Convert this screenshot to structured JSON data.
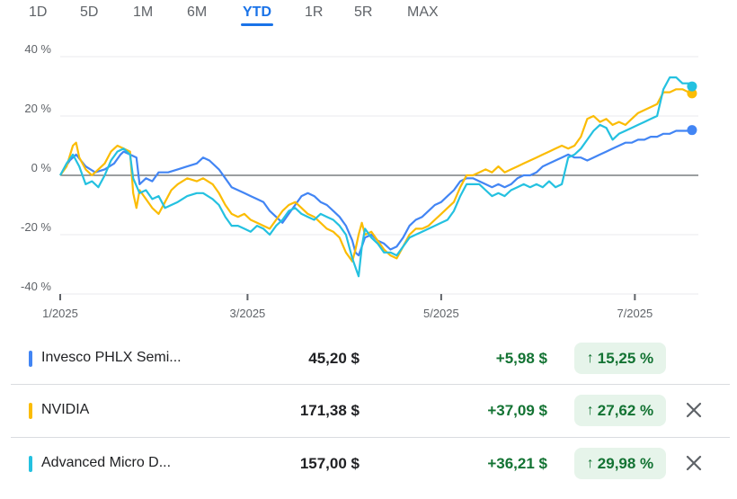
{
  "tabs": [
    {
      "label": "1D",
      "active": false
    },
    {
      "label": "5D",
      "active": false
    },
    {
      "label": "1M",
      "active": false
    },
    {
      "label": "6M",
      "active": false
    },
    {
      "label": "YTD",
      "active": true
    },
    {
      "label": "1R",
      "active": false
    },
    {
      "label": "5R",
      "active": false
    },
    {
      "label": "MAX",
      "active": false
    }
  ],
  "chart_data": {
    "type": "line",
    "ylim": [
      -40,
      40
    ],
    "yticks": [
      {
        "v": 40,
        "label": "40 %"
      },
      {
        "v": 20,
        "label": "20 %"
      },
      {
        "v": 0,
        "label": "0 %"
      },
      {
        "v": -20,
        "label": "-20 %"
      },
      {
        "v": -40,
        "label": "-40 %"
      }
    ],
    "xticks": [
      {
        "label": "1/2025",
        "t": 0
      },
      {
        "label": "3/2025",
        "t": 59
      },
      {
        "label": "5/2025",
        "t": 120
      },
      {
        "label": "7/2025",
        "t": 181
      }
    ],
    "xmax": 201,
    "grid": true,
    "series": [
      {
        "name": "Invesco PHLX Semi...",
        "color": "#4285f4",
        "points": [
          [
            0,
            0
          ],
          [
            3,
            5
          ],
          [
            5,
            7
          ],
          [
            8,
            3
          ],
          [
            11,
            1
          ],
          [
            14,
            2
          ],
          [
            17,
            4
          ],
          [
            19,
            7
          ],
          [
            20,
            8
          ],
          [
            22,
            7
          ],
          [
            24,
            6
          ],
          [
            25,
            -3
          ],
          [
            27,
            -1
          ],
          [
            29,
            -2
          ],
          [
            31,
            1
          ],
          [
            34,
            1
          ],
          [
            37,
            2
          ],
          [
            40,
            3
          ],
          [
            43,
            4
          ],
          [
            45,
            6
          ],
          [
            47,
            5
          ],
          [
            50,
            2
          ],
          [
            52,
            -1
          ],
          [
            54,
            -4
          ],
          [
            56,
            -5
          ],
          [
            58,
            -6
          ],
          [
            60,
            -7
          ],
          [
            62,
            -8
          ],
          [
            64,
            -9
          ],
          [
            66,
            -12
          ],
          [
            68,
            -14
          ],
          [
            70,
            -16
          ],
          [
            72,
            -13
          ],
          [
            74,
            -10
          ],
          [
            76,
            -7
          ],
          [
            78,
            -6
          ],
          [
            80,
            -7
          ],
          [
            82,
            -9
          ],
          [
            84,
            -10
          ],
          [
            86,
            -12
          ],
          [
            88,
            -14
          ],
          [
            90,
            -17
          ],
          [
            92,
            -22
          ],
          [
            93,
            -26
          ],
          [
            94,
            -27
          ],
          [
            95,
            -24
          ],
          [
            96,
            -21
          ],
          [
            98,
            -20
          ],
          [
            100,
            -22
          ],
          [
            102,
            -23
          ],
          [
            104,
            -25
          ],
          [
            106,
            -24
          ],
          [
            108,
            -21
          ],
          [
            110,
            -17
          ],
          [
            112,
            -15
          ],
          [
            114,
            -14
          ],
          [
            116,
            -12
          ],
          [
            118,
            -10
          ],
          [
            120,
            -9
          ],
          [
            122,
            -7
          ],
          [
            124,
            -5
          ],
          [
            126,
            -2
          ],
          [
            128,
            -1
          ],
          [
            130,
            -1
          ],
          [
            132,
            -2
          ],
          [
            134,
            -3
          ],
          [
            136,
            -4
          ],
          [
            138,
            -3
          ],
          [
            140,
            -4
          ],
          [
            142,
            -3
          ],
          [
            144,
            -1
          ],
          [
            146,
            0
          ],
          [
            148,
            0
          ],
          [
            150,
            1
          ],
          [
            152,
            3
          ],
          [
            154,
            4
          ],
          [
            156,
            5
          ],
          [
            158,
            6
          ],
          [
            160,
            7
          ],
          [
            162,
            6
          ],
          [
            164,
            6
          ],
          [
            166,
            5
          ],
          [
            168,
            6
          ],
          [
            170,
            7
          ],
          [
            172,
            8
          ],
          [
            174,
            9
          ],
          [
            176,
            10
          ],
          [
            178,
            11
          ],
          [
            180,
            11
          ],
          [
            182,
            12
          ],
          [
            184,
            12
          ],
          [
            186,
            13
          ],
          [
            188,
            13
          ],
          [
            190,
            14
          ],
          [
            192,
            14
          ],
          [
            194,
            15
          ],
          [
            196,
            15
          ],
          [
            198,
            15
          ],
          [
            199,
            15.25
          ]
        ]
      },
      {
        "name": "NVIDIA",
        "color": "#fbbc04",
        "points": [
          [
            0,
            0
          ],
          [
            2,
            3
          ],
          [
            4,
            10
          ],
          [
            5,
            11
          ],
          [
            6,
            6
          ],
          [
            8,
            2
          ],
          [
            10,
            0
          ],
          [
            12,
            2
          ],
          [
            14,
            4
          ],
          [
            16,
            8
          ],
          [
            18,
            10
          ],
          [
            20,
            9
          ],
          [
            22,
            8
          ],
          [
            23,
            -6
          ],
          [
            24,
            -11
          ],
          [
            25,
            -5
          ],
          [
            27,
            -8
          ],
          [
            29,
            -11
          ],
          [
            31,
            -13
          ],
          [
            33,
            -9
          ],
          [
            35,
            -5
          ],
          [
            37,
            -3
          ],
          [
            40,
            -1
          ],
          [
            43,
            -2
          ],
          [
            45,
            -1
          ],
          [
            48,
            -3
          ],
          [
            50,
            -6
          ],
          [
            52,
            -10
          ],
          [
            54,
            -13
          ],
          [
            56,
            -14
          ],
          [
            58,
            -13
          ],
          [
            60,
            -15
          ],
          [
            62,
            -16
          ],
          [
            64,
            -17
          ],
          [
            66,
            -18
          ],
          [
            68,
            -15
          ],
          [
            70,
            -12
          ],
          [
            72,
            -10
          ],
          [
            74,
            -9
          ],
          [
            76,
            -11
          ],
          [
            78,
            -13
          ],
          [
            80,
            -14
          ],
          [
            82,
            -16
          ],
          [
            84,
            -18
          ],
          [
            86,
            -19
          ],
          [
            88,
            -21
          ],
          [
            90,
            -26
          ],
          [
            92,
            -29
          ],
          [
            93,
            -25
          ],
          [
            94,
            -20
          ],
          [
            95,
            -16
          ],
          [
            96,
            -20
          ],
          [
            98,
            -19
          ],
          [
            100,
            -22
          ],
          [
            102,
            -25
          ],
          [
            104,
            -27
          ],
          [
            106,
            -28
          ],
          [
            108,
            -24
          ],
          [
            110,
            -20
          ],
          [
            112,
            -18
          ],
          [
            114,
            -18
          ],
          [
            116,
            -17
          ],
          [
            118,
            -15
          ],
          [
            120,
            -13
          ],
          [
            122,
            -11
          ],
          [
            124,
            -9
          ],
          [
            126,
            -4
          ],
          [
            128,
            0
          ],
          [
            130,
            0
          ],
          [
            132,
            1
          ],
          [
            134,
            2
          ],
          [
            136,
            1
          ],
          [
            138,
            3
          ],
          [
            140,
            1
          ],
          [
            142,
            2
          ],
          [
            144,
            3
          ],
          [
            146,
            4
          ],
          [
            148,
            5
          ],
          [
            150,
            6
          ],
          [
            152,
            7
          ],
          [
            154,
            8
          ],
          [
            156,
            9
          ],
          [
            158,
            10
          ],
          [
            160,
            9
          ],
          [
            162,
            10
          ],
          [
            164,
            13
          ],
          [
            166,
            19
          ],
          [
            168,
            20
          ],
          [
            170,
            18
          ],
          [
            172,
            19
          ],
          [
            174,
            17
          ],
          [
            176,
            18
          ],
          [
            178,
            17
          ],
          [
            180,
            19
          ],
          [
            182,
            21
          ],
          [
            184,
            22
          ],
          [
            186,
            23
          ],
          [
            188,
            24
          ],
          [
            190,
            28
          ],
          [
            192,
            28
          ],
          [
            194,
            29
          ],
          [
            196,
            29
          ],
          [
            198,
            28
          ],
          [
            199,
            27.62
          ]
        ]
      },
      {
        "name": "Advanced Micro D...",
        "color": "#24c1e0",
        "points": [
          [
            0,
            0
          ],
          [
            2,
            4
          ],
          [
            4,
            7
          ],
          [
            6,
            3
          ],
          [
            8,
            -3
          ],
          [
            10,
            -2
          ],
          [
            12,
            -4
          ],
          [
            14,
            0
          ],
          [
            16,
            5
          ],
          [
            18,
            8
          ],
          [
            20,
            9
          ],
          [
            22,
            7
          ],
          [
            23,
            -1
          ],
          [
            25,
            -6
          ],
          [
            27,
            -5
          ],
          [
            29,
            -8
          ],
          [
            31,
            -7
          ],
          [
            33,
            -11
          ],
          [
            35,
            -10
          ],
          [
            37,
            -9
          ],
          [
            40,
            -7
          ],
          [
            43,
            -6
          ],
          [
            45,
            -6
          ],
          [
            48,
            -8
          ],
          [
            50,
            -10
          ],
          [
            52,
            -14
          ],
          [
            54,
            -17
          ],
          [
            56,
            -17
          ],
          [
            58,
            -18
          ],
          [
            60,
            -19
          ],
          [
            62,
            -17
          ],
          [
            64,
            -18
          ],
          [
            66,
            -20
          ],
          [
            68,
            -17
          ],
          [
            70,
            -15
          ],
          [
            72,
            -12
          ],
          [
            74,
            -11
          ],
          [
            76,
            -13
          ],
          [
            78,
            -14
          ],
          [
            80,
            -15
          ],
          [
            82,
            -13
          ],
          [
            84,
            -14
          ],
          [
            86,
            -15
          ],
          [
            88,
            -17
          ],
          [
            90,
            -20
          ],
          [
            92,
            -28
          ],
          [
            94,
            -34
          ],
          [
            95,
            -24
          ],
          [
            96,
            -18
          ],
          [
            98,
            -21
          ],
          [
            100,
            -23
          ],
          [
            102,
            -26
          ],
          [
            104,
            -26
          ],
          [
            106,
            -27
          ],
          [
            108,
            -24
          ],
          [
            110,
            -21
          ],
          [
            112,
            -20
          ],
          [
            114,
            -19
          ],
          [
            116,
            -18
          ],
          [
            118,
            -17
          ],
          [
            120,
            -16
          ],
          [
            122,
            -15
          ],
          [
            124,
            -12
          ],
          [
            126,
            -7
          ],
          [
            128,
            -3
          ],
          [
            130,
            -3
          ],
          [
            132,
            -3
          ],
          [
            134,
            -5
          ],
          [
            136,
            -7
          ],
          [
            138,
            -6
          ],
          [
            140,
            -7
          ],
          [
            142,
            -5
          ],
          [
            144,
            -4
          ],
          [
            146,
            -3
          ],
          [
            148,
            -4
          ],
          [
            150,
            -3
          ],
          [
            152,
            -4
          ],
          [
            154,
            -2
          ],
          [
            156,
            -4
          ],
          [
            158,
            -3
          ],
          [
            160,
            6
          ],
          [
            162,
            7
          ],
          [
            164,
            9
          ],
          [
            166,
            12
          ],
          [
            168,
            15
          ],
          [
            170,
            17
          ],
          [
            172,
            16
          ],
          [
            174,
            12
          ],
          [
            176,
            14
          ],
          [
            178,
            15
          ],
          [
            180,
            16
          ],
          [
            182,
            17
          ],
          [
            184,
            18
          ],
          [
            186,
            19
          ],
          [
            188,
            20
          ],
          [
            190,
            29
          ],
          [
            192,
            33
          ],
          [
            194,
            33
          ],
          [
            196,
            31
          ],
          [
            198,
            31
          ],
          [
            199,
            29.98
          ]
        ]
      }
    ]
  },
  "rows": [
    {
      "name": "Invesco PHLX Semi...",
      "price": "45,20 $",
      "change": "+5,98 $",
      "pct_arrow": "↑",
      "pct": "15,25 %",
      "color": "#4285f4",
      "removable": false
    },
    {
      "name": "NVIDIA",
      "price": "171,38 $",
      "change": "+37,09 $",
      "pct_arrow": "↑",
      "pct": "27,62 %",
      "color": "#fbbc04",
      "removable": true
    },
    {
      "name": "Advanced Micro D...",
      "price": "157,00 $",
      "change": "+36,21 $",
      "pct_arrow": "↑",
      "pct": "29,98 %",
      "color": "#24c1e0",
      "removable": true
    }
  ],
  "icons": {
    "close": "close-icon",
    "arrow": "arrow-up-icon"
  }
}
